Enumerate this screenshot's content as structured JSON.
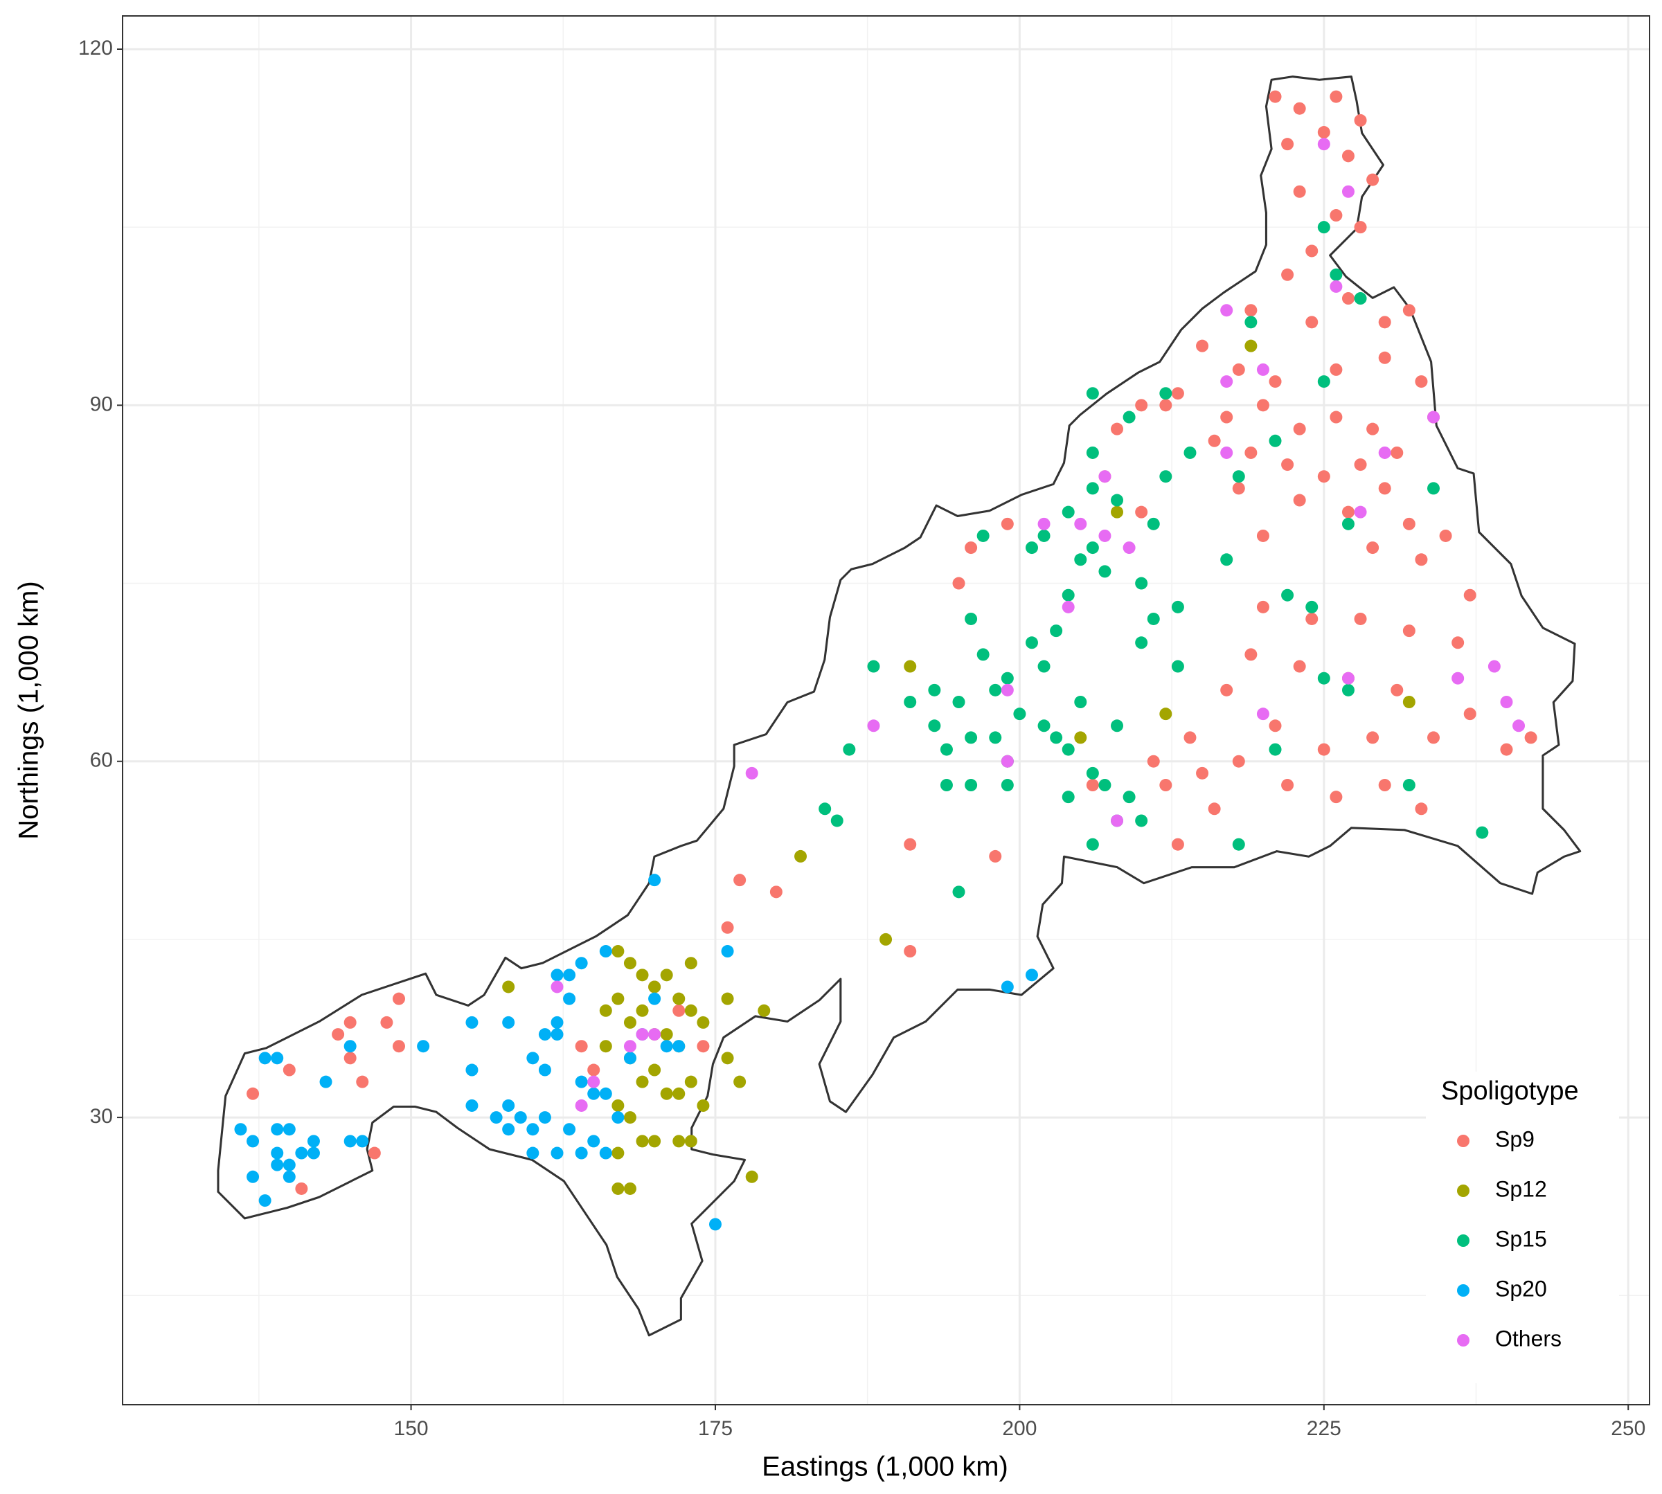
{
  "chart_data": {
    "type": "scatter",
    "x_label": "Eastings (1,000 km)",
    "y_label": "Northings (1,000 km)",
    "xlim": [
      126.3,
      251.75
    ],
    "ylim": [
      5.8,
      122.8
    ],
    "xticks": [
      150,
      175,
      200,
      225,
      250
    ],
    "yticks": [
      30,
      60,
      90,
      120
    ],
    "grid": true,
    "minor_grid": true,
    "legend_title": "Spoligotype",
    "legend_position": "bottom-right",
    "series": [
      {
        "name": "Sp9",
        "color": "#F8766D",
        "x": [
          221,
          223,
          226,
          228,
          222,
          225,
          227,
          229,
          223,
          226,
          228,
          224,
          222,
          227,
          230,
          219,
          224,
          232,
          215,
          218,
          221,
          226,
          230,
          233,
          213,
          217,
          220,
          223,
          226,
          229,
          231,
          234,
          216,
          219,
          222,
          225,
          228,
          230,
          218,
          223,
          227,
          232,
          235,
          220,
          229,
          233,
          237,
          220,
          224,
          228,
          232,
          236,
          219,
          223,
          227,
          231,
          237,
          242,
          240,
          217,
          221,
          225,
          229,
          234,
          214,
          218,
          222,
          226,
          230,
          233,
          212,
          216,
          213,
          208,
          207,
          210,
          196,
          195,
          199,
          199,
          198,
          191,
          191,
          176,
          177,
          180,
          149,
          148,
          149,
          145,
          144,
          146,
          145,
          140,
          137,
          141,
          147,
          165,
          170,
          172,
          174,
          164,
          206,
          211,
          215,
          212,
          210
        ],
        "values": [
          116,
          115,
          116,
          114,
          112,
          113,
          111,
          109,
          108,
          106,
          105,
          103,
          101,
          99,
          97,
          98,
          97,
          98,
          95,
          93,
          92,
          93,
          94,
          92,
          91,
          89,
          90,
          88,
          89,
          88,
          86,
          89,
          87,
          86,
          85,
          84,
          85,
          83,
          83,
          82,
          81,
          80,
          79,
          79,
          78,
          77,
          74,
          73,
          72,
          72,
          71,
          70,
          69,
          68,
          67,
          66,
          64,
          62,
          61,
          66,
          63,
          61,
          62,
          62,
          62,
          60,
          58,
          57,
          58,
          56,
          58,
          56,
          53,
          88,
          84,
          81,
          78,
          75,
          80,
          60,
          52,
          53,
          44,
          46,
          50,
          49,
          40,
          38,
          36,
          38,
          37,
          33,
          35,
          34,
          32,
          24,
          27,
          34,
          41,
          39,
          36,
          36,
          58,
          60,
          59,
          90,
          90
        ]
      },
      {
        "name": "Sp12",
        "color": "#A3A500",
        "x": [
          158,
          167,
          168,
          169,
          170,
          171,
          172,
          173,
          173,
          174,
          167,
          168,
          169,
          170,
          171,
          172,
          166,
          168,
          169,
          170,
          171,
          172,
          173,
          167,
          168,
          169,
          170,
          167,
          168,
          167,
          172,
          173,
          176,
          176,
          177,
          179,
          178,
          182,
          189,
          191,
          212,
          205,
          219,
          208,
          232,
          166,
          174
        ],
        "values": [
          41,
          44,
          43,
          42,
          41,
          42,
          40,
          43,
          39,
          38,
          40,
          38,
          39,
          37,
          37,
          36,
          36,
          35,
          33,
          34,
          32,
          32,
          33,
          31,
          30,
          28,
          28,
          27,
          24,
          24,
          28,
          28,
          35,
          40,
          33,
          39,
          25,
          52,
          45,
          68,
          64,
          62,
          95,
          81,
          65,
          39,
          31
        ]
      },
      {
        "name": "Sp15",
        "color": "#00BF7D",
        "x": [
          225,
          226,
          219,
          228,
          225,
          221,
          214,
          218,
          227,
          234,
          238,
          232,
          217,
          222,
          224,
          218,
          225,
          227,
          221,
          213,
          210,
          211,
          212,
          209,
          206,
          206,
          208,
          204,
          202,
          201,
          205,
          206,
          207,
          204,
          203,
          201,
          202,
          199,
          198,
          197,
          196,
          195,
          193,
          193,
          191,
          194,
          196,
          194,
          196,
          199,
          199,
          202,
          204,
          205,
          206,
          207,
          208,
          209,
          210,
          206,
          203,
          200,
          198,
          188,
          186,
          184,
          185,
          195,
          208,
          210,
          211,
          213,
          204,
          212,
          197,
          206
        ],
        "values": [
          105,
          101,
          97,
          99,
          92,
          87,
          86,
          84,
          80,
          83,
          54,
          58,
          77,
          74,
          73,
          53,
          67,
          66,
          61,
          68,
          75,
          80,
          84,
          89,
          86,
          83,
          82,
          81,
          79,
          78,
          77,
          78,
          76,
          74,
          71,
          70,
          68,
          67,
          66,
          69,
          72,
          65,
          66,
          63,
          65,
          61,
          62,
          58,
          58,
          58,
          60,
          63,
          61,
          65,
          59,
          58,
          55,
          57,
          55,
          53,
          62,
          64,
          62,
          68,
          61,
          56,
          55,
          49,
          63,
          70,
          72,
          73,
          57,
          91,
          79,
          91
        ]
      },
      {
        "name": "Sp20",
        "color": "#00B0F6",
        "x": [
          136,
          137,
          138,
          137,
          139,
          140,
          139,
          140,
          141,
          142,
          142,
          140,
          139,
          145,
          146,
          145,
          143,
          151,
          155,
          155,
          158,
          155,
          157,
          158,
          159,
          160,
          161,
          158,
          160,
          161,
          162,
          161,
          160,
          162,
          163,
          164,
          166,
          163,
          162,
          164,
          165,
          166,
          167,
          166,
          165,
          164,
          162,
          163,
          170,
          171,
          172,
          176,
          175,
          170,
          199,
          201,
          169,
          168,
          139,
          138
        ],
        "values": [
          29,
          28,
          23,
          25,
          29,
          29,
          27,
          26,
          27,
          28,
          27,
          25,
          26,
          28,
          28,
          36,
          33,
          36,
          38,
          34,
          38,
          31,
          30,
          31,
          30,
          29,
          30,
          29,
          27,
          34,
          38,
          37,
          35,
          42,
          42,
          43,
          44,
          40,
          37,
          33,
          32,
          32,
          30,
          27,
          28,
          27,
          27,
          29,
          40,
          36,
          36,
          44,
          21,
          50,
          41,
          42,
          37,
          35,
          35,
          35
        ]
      },
      {
        "name": "Others",
        "color": "#E76BF3",
        "x": [
          225,
          227,
          226,
          217,
          220,
          217,
          217,
          234,
          230,
          228,
          227,
          220,
          236,
          239,
          240,
          241,
          209,
          207,
          205,
          202,
          207,
          204,
          199,
          199,
          188,
          178,
          208,
          162,
          164,
          165,
          168,
          169,
          170
        ],
        "values": [
          112,
          108,
          100,
          98,
          93,
          92,
          86,
          89,
          86,
          81,
          67,
          64,
          67,
          68,
          65,
          63,
          78,
          79,
          80,
          80,
          84,
          73,
          66,
          60,
          63,
          59,
          55,
          41,
          31,
          33,
          36,
          37,
          37
        ]
      }
    ]
  }
}
